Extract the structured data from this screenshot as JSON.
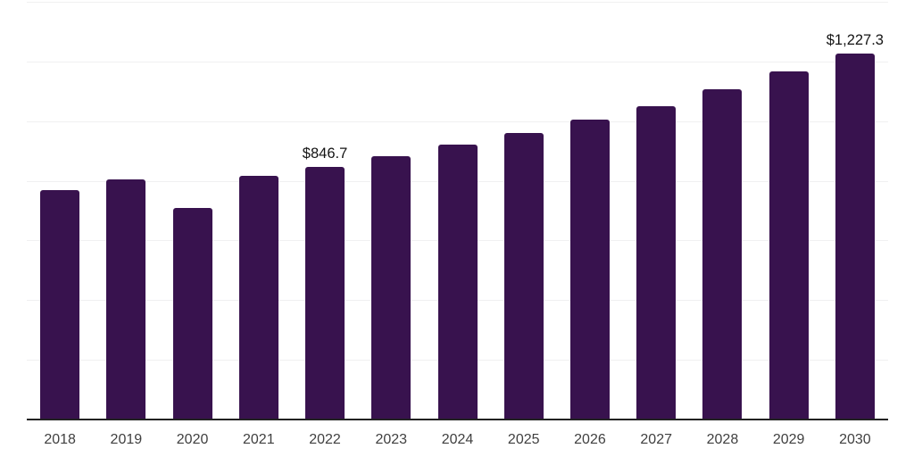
{
  "chart_data": {
    "type": "bar",
    "title": "",
    "xlabel": "",
    "ylabel": "",
    "categories": [
      "2018",
      "2019",
      "2020",
      "2021",
      "2022",
      "2023",
      "2024",
      "2025",
      "2026",
      "2027",
      "2028",
      "2029",
      "2030"
    ],
    "values": [
      770,
      805,
      710,
      818,
      846.7,
      881,
      922,
      960,
      1005,
      1051,
      1107,
      1167,
      1227.3
    ],
    "data_labels": [
      {
        "category": "2022",
        "text": "$846.7"
      },
      {
        "category": "2030",
        "text": "$1,227.3"
      }
    ],
    "ylim": [
      0,
      1400
    ],
    "gridline_interval": 200,
    "grid": true,
    "legend": false,
    "y_tick_labels_visible": false
  },
  "colors": {
    "background": "#ffffff",
    "bar": "#38124e",
    "gridline": "#f0f0f1",
    "axis_line": "#222222",
    "tick_label": "#404040",
    "data_label": "#141414"
  }
}
